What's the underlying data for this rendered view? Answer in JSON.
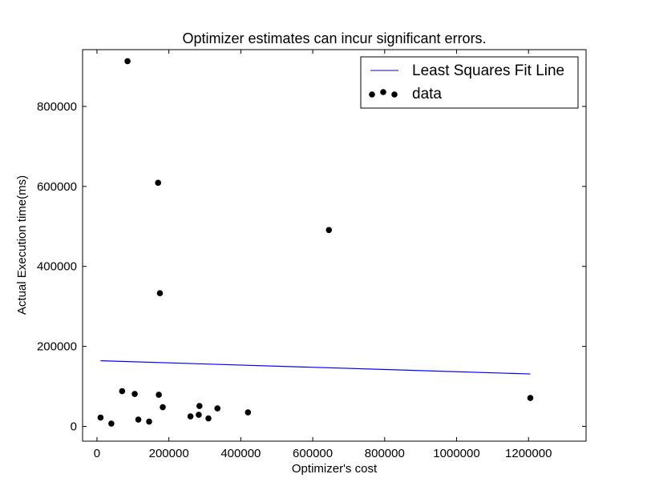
{
  "chart_data": {
    "type": "scatter",
    "title": "Optimizer estimates can incur significant errors.",
    "xlabel": "Optimizer's cost",
    "ylabel": "Actual Execution time(ms)",
    "xlim": [
      -40000,
      1360000
    ],
    "ylim": [
      -37000,
      942000
    ],
    "xticks": [
      0,
      200000,
      400000,
      600000,
      800000,
      1000000,
      1200000
    ],
    "yticks": [
      0,
      200000,
      400000,
      600000,
      800000
    ],
    "grid": false,
    "legend_position": "top-right",
    "series": [
      {
        "name": "Least Squares Fit Line",
        "kind": "line",
        "color": "#0000ff",
        "x": [
          10000,
          1205000
        ],
        "y": [
          164000,
          131000
        ]
      },
      {
        "name": "data",
        "kind": "scatter",
        "color": "#000000",
        "x": [
          10000,
          40000,
          70000,
          85000,
          105000,
          115000,
          145000,
          170000,
          172000,
          175000,
          183000,
          260000,
          283000,
          285000,
          310000,
          335000,
          420000,
          645000,
          1205000
        ],
        "y": [
          22000,
          7000,
          88000,
          913000,
          81000,
          17000,
          12000,
          609000,
          79000,
          333000,
          48000,
          25000,
          29000,
          51000,
          20000,
          45000,
          35000,
          491000,
          71000
        ]
      }
    ]
  }
}
